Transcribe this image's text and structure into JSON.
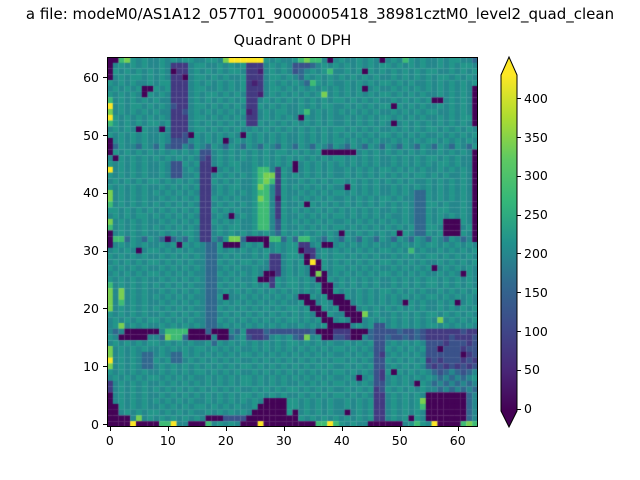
{
  "figure": {
    "suptitle": "a file: modeM0/AS1A12_057T01_9000005418_38981cztM0_level2_quad_clean",
    "title": "Quadrant 0 DPH"
  },
  "chart_data": {
    "type": "heatmap",
    "title": "Quadrant 0 DPH",
    "suptitle": "a file: modeM0/AS1A12_057T01_9000005418_38981cztM0_level2_quad_clean",
    "colormap": "viridis",
    "grid_size": [
      64,
      64
    ],
    "x_range": [
      -0.5,
      63.5
    ],
    "y_range": [
      -0.5,
      63.5
    ],
    "x_ticks": [
      0,
      10,
      20,
      30,
      40,
      50,
      60
    ],
    "y_ticks": [
      0,
      10,
      20,
      30,
      40,
      50,
      60
    ],
    "colorbar": {
      "vmin": -3,
      "vmax": 430,
      "ticks": [
        0,
        50,
        100,
        150,
        200,
        250,
        300,
        350,
        400
      ],
      "extend": "both"
    },
    "value_map": {
      ".": 0,
      "1": 40,
      "2": 80,
      "3": 120,
      "4": 160,
      "5": 200,
      "6": 220,
      "7": 280,
      "8": 340,
      "9": 430
    },
    "rows_order": "top_to_bottom",
    "row0_y": 63,
    "grid": [
      "..786565 56565665 56658999 99965655 678775.5 6556565. 56576565 56566554",
      ".5656565 56522256 65565656 22256565 33345656 56565656 65656565 56565665",
      ".6565656 565.2256 56565665 22156565 34565675 5656.656 56565656 65565656",
      ".5656656 56522.56 65656556 22256656 54656565 65656565 56565656 56656565",
      "65656556 56622256 56565656 21256565 65476565 56565656 65656556 56565656",
      "565656.. 65622256 65565656 22256656 56565656 5656.565 56565656 5656565.",
      "656565.6 56522256 56656565 22156565 65656856 56565656 65656565 5656565.",
      "75656565 65522256 56565656 22565656 56565656 65656565 56565656 ..56565.",
      "95656656 56532256 65656565 22656565 56565665 56565656 6.656565 5656565.",
      "85656565 65522356 56565656 12565665 56756565 65656565 56565656 6556565.",
      "96565656 56522256 65656565 22565656 5.656565 56565656 65656565 5656566.",
      "76565656 65622256 56565656 22656565 65656565 56565656 5.565656 5656565.",
      "56565.65 5.522256 65656565 56565656 56565656 65656565 56565656 65656565",
      "65656565 565223.6 5656565. 65656565 56565656 56565656 65656565 56565656",
      ".5656565 56533356 5656.565 65656565 56565656 65656565 56565656 65656565",
      ".4655465 46433546 54654654 65465465 46546546 54654654 65465465 46546546",
      ".6565656 56565656 33565656 56565665 65656... ...56565 65656565 5656565.",
      "5.656565 65656565 32565656 56565656 56565656 65656565 56565656 6565655.",
      "65656565 56533656 22565665 56565656 .5656565 65656565 56565656 5665655.",
      "95656565 56533565 22.56565 56775265 .5656565 56565656 65656565 5656565.",
      "65656565 56533556 22565656 56788265 65656565 56565656 56565665 6565565.",
      "56565656 65656565 22656565 56787265 56565656 65656565 65656556 5656565.",
      "65656565 56565656 22565665 56875265 65656565 5.656565 56565656 5656565.",
      "85656565 65656565 22565656 56775265 56565656 65656565 56565446 5656565.",
      "85656565 56565656 22656565 56875165 65656565 56565656 65655446 5656565.",
      "75656565 65656565 22565656 56775265 56.65656 56565656 56565446 6565565.",
      "66565656 56565656 22656565 56775265 65656565 65656565 56565446 5665565.",
      "56565665 65656565 22565.56 56775265 56565656 65656565 65565446 5656565.",
      "85656565 56565656 22656565 56775365 65656565 56565656 56565446 56...65.",
      "75656565 65656565 22565665 56775365 56565656 65656565 65656446 65...56.",
      ".5656565 56565665 22565656 56565465 65656565 .6565656 56.65446 56...65.",
      ".7746546 54.45465 22546884 ....7746 47765465 46546546 54654654 6546545.",
      ".5656565 5656.656 5446...5 656.5656 62256..5 65656565 56565656 65656565",
      "56565.56 65656565 54465656 56565656 6.225656 56565656 65657565 56565656",
      "65656565 56565656 54456565 56562256 65.25656 65656565 56565656 65656565",
      "56565656 65656565 54465656 65652256 56.9.656 56565656 65656565 56565656",
      "65656565 56565656 54456565 56552256 565..656 65656565 56565656 .5656565",
      "56565656 65656565 54465656 565..256 565.8.56 56565656 65656565 56565.65",
      "65656565 56565656 54456565 56..2656 6565..65 65656565 56565656 65656565",
      "75656565 65656565 54465656 56562656 65656..5 65656565 56565656 65656565",
      "85856565 56565656 54456565 65656565 65656..6 56565656 65656565 56565656",
      "85856565 65656565 5446.556 56565656 5..656.. .6565656 56565656 65656565",
      "85756565 56565656 54456565 65656565 56..565. ..565656 565.6565 5656.565",
      "85656565 65656565 54465656 56565656 656..656 ...56565 65656565 56565656",
      "65656565 56565656 54456565 65656565 6565..65 5...8565 56565656 65656565",
      "56565656 65656565 54465656 56565656 65656..5 65..5656 56565656 58565656",
      "56856565 56565656 54456565 65656565 565656.. ..565633 56565656 65656565",
      "545..... .57777.. .4...546 22243333 3334...2 22...433 33433432 22222322",
      "65.....5 548774.. ..5..456 32235656 43856..3 32..5433 43343432 22232223",
      "56565656 65656565 56465656 56565656 65656565 56565633 56565653 33233323",
      "85656565 56565656 65656565 56565656 56565656 65656533 65656563 3.333233",
      "85656544 56544656 56565656 65656565 65656565 56565632 56565653 33333.23",
      "95656544 65644565 65656565 56565656 56565656 65656533 65656562 32333232",
      "85656544 56565656 56565656 65656565 65656565 56565633 56565653 23232323",
      "65656565 56565656 65656565 56565656 56565656 65656532 6.656565 43454345",
      "56565656 65656565 56565656 65656565 65656565 565.5632 56565656 54545456",
      "25656565 56565656 56565656 65656565 56565656 65656533 56565.65 45454545",
      "25656565 65656565 65656565 56565656 65656565 56565623 65656565 54545454",
      ".5656565 56565656 56565656 65656565 56565656 65656522 5656565. ......45",
      ".5656565 65656565 56565656 565....6 65656565 56565622 5656568. ......45",
      "..656565 56565656 65656565 56.....6 65656565 56565622 5656567. ......45",
      "..565656 65656565 56565656 5......6 .5656565 5.565622 5656565. ......45",
      "....5856 56565656 5...3333 ........ .6565656 56565622 5656.65. ......45",
      "....9... .77955.. .756565. ..9..... ....7797 65655... ...56765 9....787"
    ]
  }
}
